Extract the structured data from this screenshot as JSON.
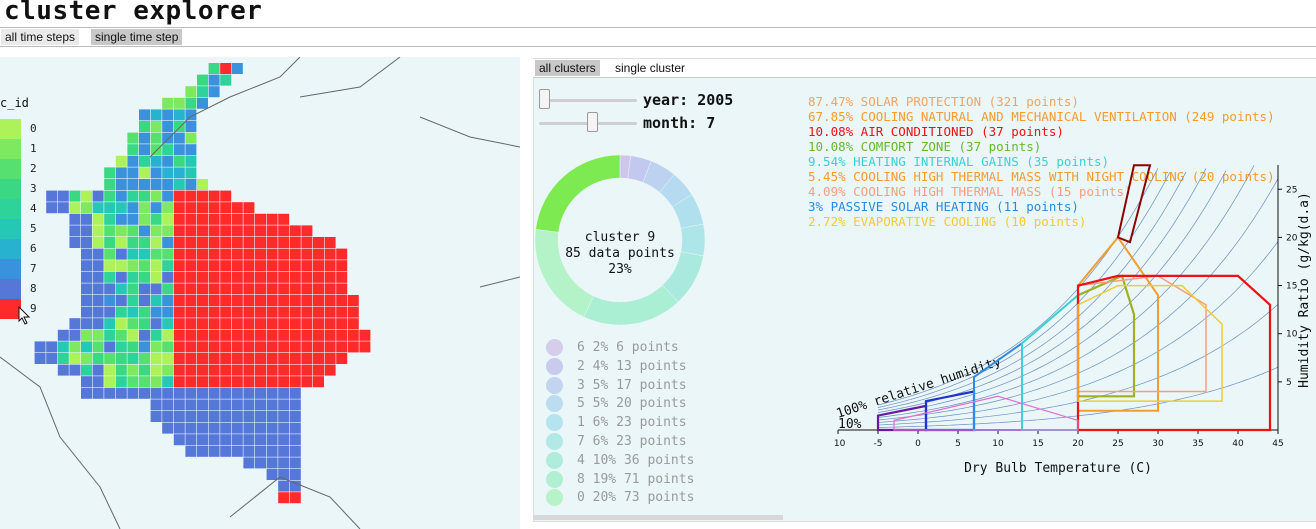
{
  "app": {
    "title": "cluster explorer"
  },
  "top_tabs": [
    {
      "label": "all time steps",
      "active": true
    },
    {
      "label": "single time step",
      "active": false
    }
  ],
  "map": {
    "legend_title": "c_id",
    "legend": [
      {
        "id": "0",
        "color": "#aef25a"
      },
      {
        "id": "1",
        "color": "#7ee85e"
      },
      {
        "id": "2",
        "color": "#55e070"
      },
      {
        "id": "3",
        "color": "#3bd884"
      },
      {
        "id": "4",
        "color": "#2ed39a"
      },
      {
        "id": "5",
        "color": "#24c8b4"
      },
      {
        "id": "6",
        "color": "#27b3cf"
      },
      {
        "id": "7",
        "color": "#3a92dc"
      },
      {
        "id": "8",
        "color": "#5577d8"
      },
      {
        "id": "9",
        "color": "#ff2a2a"
      }
    ]
  },
  "right_tabs": [
    {
      "label": "all clusters",
      "active": true
    },
    {
      "label": "single cluster",
      "active": false
    }
  ],
  "controls": {
    "year_label": "year:",
    "year_value": "2005",
    "year_pos": 0.0,
    "month_label": "month:",
    "month_value": "7",
    "month_pos": 0.55
  },
  "donut": {
    "line1": "cluster 9",
    "line2": "85 data points",
    "line3": "23%",
    "slices": [
      {
        "id": "6",
        "pct": 2,
        "color": "#cfc6ea"
      },
      {
        "id": "2",
        "pct": 4,
        "color": "#c2c8ee"
      },
      {
        "id": "3",
        "pct": 5,
        "color": "#bcd2f0"
      },
      {
        "id": "5",
        "pct": 5,
        "color": "#b6daf0"
      },
      {
        "id": "1",
        "pct": 6,
        "color": "#b0e0ee"
      },
      {
        "id": "7",
        "pct": 6,
        "color": "#ade6e8"
      },
      {
        "id": "4",
        "pct": 10,
        "color": "#aaeade"
      },
      {
        "id": "8",
        "pct": 19,
        "color": "#aaeed4"
      },
      {
        "id": "0",
        "pct": 20,
        "color": "#b4f2c8"
      },
      {
        "id": "9",
        "pct": 23,
        "color": "#7eea52"
      }
    ]
  },
  "cluster_list": [
    {
      "id": "6",
      "pct": "2%",
      "points": "6 points",
      "color": "#d6cdea"
    },
    {
      "id": "2",
      "pct": "4%",
      "points": "13 points",
      "color": "#c8cbee"
    },
    {
      "id": "3",
      "pct": "5%",
      "points": "17 points",
      "color": "#c3d4f0"
    },
    {
      "id": "5",
      "pct": "5%",
      "points": "20 points",
      "color": "#bcdcf0"
    },
    {
      "id": "1",
      "pct": "6%",
      "points": "23 points",
      "color": "#b5e3ee"
    },
    {
      "id": "7",
      "pct": "6%",
      "points": "23 points",
      "color": "#b2e8e6"
    },
    {
      "id": "4",
      "pct": "10%",
      "points": "36 points",
      "color": "#b0ecdc"
    },
    {
      "id": "8",
      "pct": "19%",
      "points": "71 points",
      "color": "#b0efd2"
    },
    {
      "id": "0",
      "pct": "20%",
      "points": "73 points",
      "color": "#b8f2c8"
    }
  ],
  "strategies": [
    {
      "text": "87.47% SOLAR PROTECTION (321 points)",
      "color": "#f4a460"
    },
    {
      "text": "67.85% COOLING NATURAL AND MECHANICAL VENTILATION (249 points)",
      "color": "#f39c30"
    },
    {
      "text": "10.08% AIR CONDITIONED (37 points)",
      "color": "#ee1111"
    },
    {
      "text": "10.08% COMFORT ZONE (37 points)",
      "color": "#6ab82e"
    },
    {
      "text": "9.54% HEATING INTERNAL GAINS (35 points)",
      "color": "#3cd2d2"
    },
    {
      "text": "5.45% COOLING HIGH THERMAL MASS WITH NIGHT COOLING (20 points)",
      "color": "#f39c30"
    },
    {
      "text": "4.09% COOLING HIGH THERMAL MASS (15 points)",
      "color": "#f4a080"
    },
    {
      "text": "3% PASSIVE SOLAR HEATING (11 points)",
      "color": "#2e8ae0"
    },
    {
      "text": "2.72% EVAPORATIVE COOLING (10 points)",
      "color": "#f2cc30"
    }
  ],
  "chart_data": {
    "type": "line",
    "xlabel": "Dry Bulb Temperature (C)",
    "ylabel": "Humidity Ratio (g/kg(d.a)",
    "xlim": [
      -10,
      45
    ],
    "ylim": [
      0,
      27
    ],
    "x_ticks": [
      "-10",
      "-5",
      "0",
      "5",
      "10",
      "15",
      "20",
      "25",
      "30",
      "35",
      "40",
      "45"
    ],
    "y_ticks": [
      "5",
      "10",
      "15",
      "20",
      "25"
    ],
    "annotations": [
      "100% relative humidity",
      "10%"
    ]
  }
}
